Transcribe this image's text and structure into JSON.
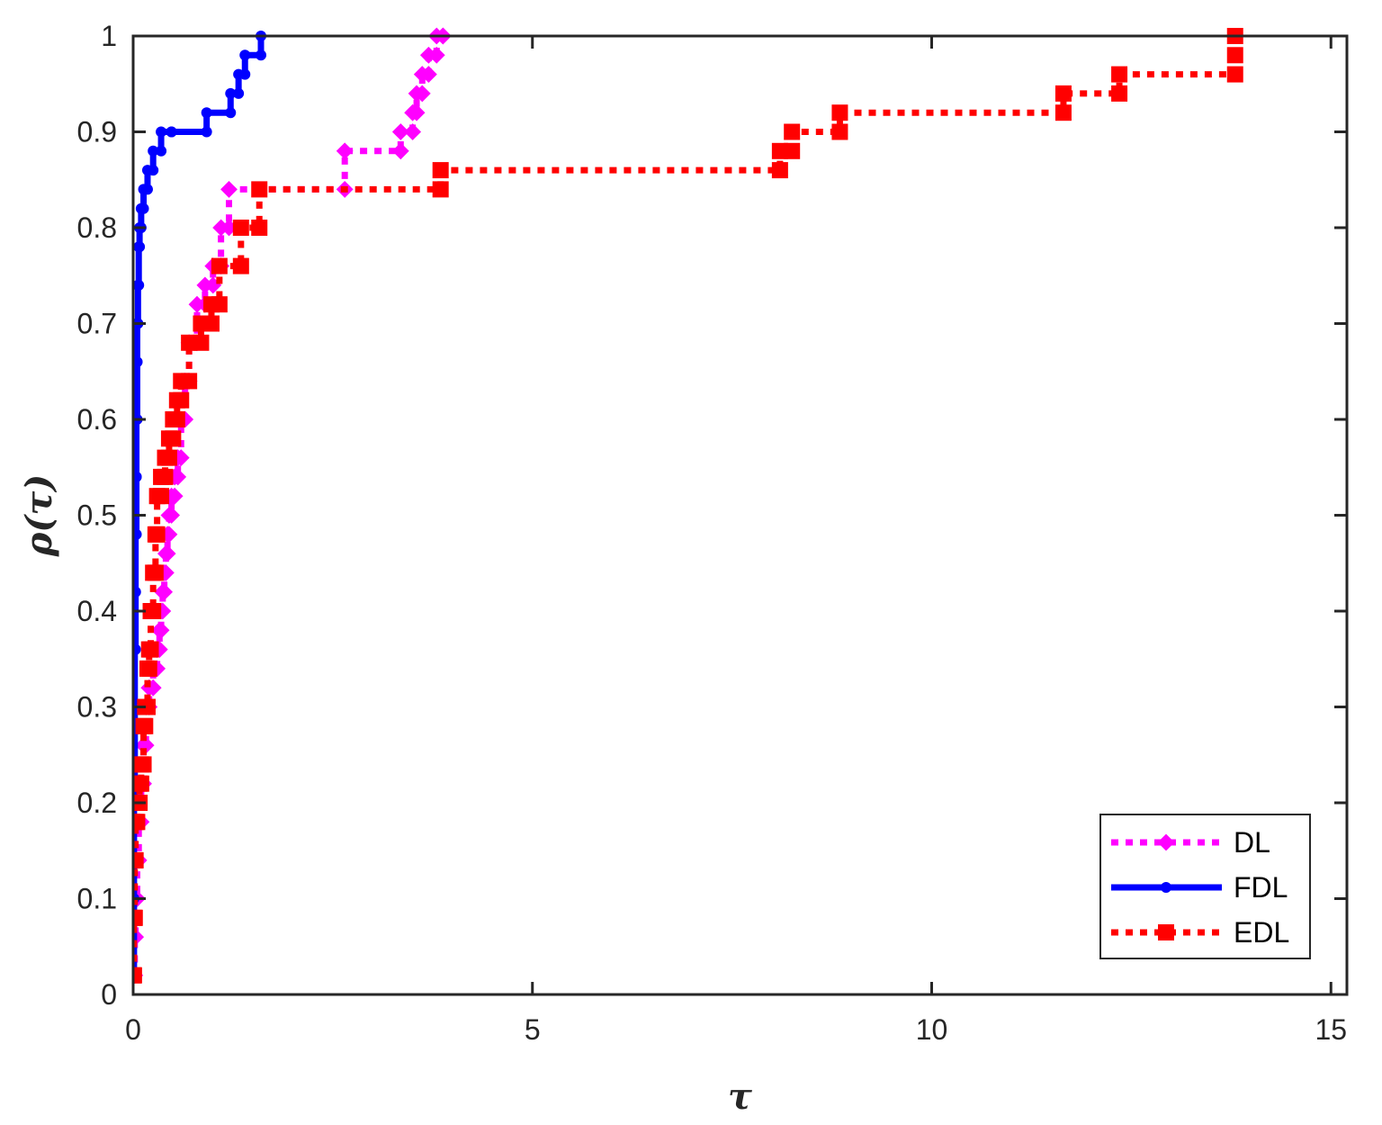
{
  "chart_data": {
    "type": "line",
    "xlabel": "τ",
    "ylabel": "ρ(τ)",
    "xlim": [
      0,
      15.2
    ],
    "ylim": [
      0,
      1
    ],
    "x_ticks": [
      "0",
      "5",
      "10",
      "15"
    ],
    "y_ticks": [
      "0",
      "0.1",
      "0.2",
      "0.3",
      "0.4",
      "0.5",
      "0.6",
      "0.7",
      "0.8",
      "0.9",
      "1"
    ],
    "grid": false,
    "legend_position": "bottom-right",
    "series": [
      {
        "name": "DL",
        "color": "#ff00ff",
        "line_style": "dotted",
        "marker": "diamond",
        "x": [
          0.0,
          0.02,
          0.03,
          0.05,
          0.07,
          0.1,
          0.13,
          0.16,
          0.2,
          0.25,
          0.3,
          0.33,
          0.35,
          0.37,
          0.39,
          0.41,
          0.43,
          0.45,
          0.48,
          0.52,
          0.56,
          0.6,
          0.65,
          0.7,
          0.8,
          0.9,
          1.0,
          1.1,
          1.2,
          2.65,
          3.35,
          3.5,
          3.55,
          3.62,
          3.7,
          3.8,
          3.88
        ],
        "y": [
          0.02,
          0.06,
          0.1,
          0.14,
          0.18,
          0.22,
          0.26,
          0.3,
          0.32,
          0.34,
          0.36,
          0.38,
          0.4,
          0.42,
          0.44,
          0.46,
          0.48,
          0.5,
          0.52,
          0.54,
          0.56,
          0.6,
          0.64,
          0.68,
          0.72,
          0.74,
          0.76,
          0.8,
          0.84,
          0.88,
          0.9,
          0.92,
          0.94,
          0.96,
          0.98,
          1.0,
          1.0
        ]
      },
      {
        "name": "FDL",
        "color": "#0000ff",
        "line_style": "solid",
        "marker": "dot",
        "x": [
          0.0,
          0.01,
          0.01,
          0.02,
          0.02,
          0.03,
          0.03,
          0.04,
          0.04,
          0.05,
          0.05,
          0.06,
          0.07,
          0.08,
          0.1,
          0.13,
          0.18,
          0.25,
          0.35,
          0.48,
          0.92,
          1.22,
          1.32,
          1.4,
          1.6
        ],
        "y": [
          0.02,
          0.1,
          0.2,
          0.3,
          0.36,
          0.42,
          0.48,
          0.54,
          0.6,
          0.66,
          0.7,
          0.74,
          0.78,
          0.8,
          0.82,
          0.84,
          0.86,
          0.88,
          0.9,
          0.9,
          0.92,
          0.94,
          0.96,
          0.98,
          1.0
        ]
      },
      {
        "name": "EDL",
        "color": "#ff0000",
        "line_style": "dotted",
        "marker": "square",
        "x": [
          0.0,
          0.01,
          0.02,
          0.03,
          0.05,
          0.08,
          0.1,
          0.13,
          0.15,
          0.18,
          0.2,
          0.22,
          0.25,
          0.28,
          0.3,
          0.35,
          0.4,
          0.45,
          0.5,
          0.55,
          0.6,
          0.7,
          0.85,
          0.98,
          1.08,
          1.35,
          1.58,
          3.85,
          8.1,
          8.25,
          8.85,
          11.65,
          12.35,
          13.8
        ],
        "y": [
          0.02,
          0.08,
          0.14,
          0.18,
          0.2,
          0.22,
          0.24,
          0.28,
          0.3,
          0.34,
          0.36,
          0.4,
          0.44,
          0.48,
          0.52,
          0.54,
          0.56,
          0.58,
          0.6,
          0.62,
          0.64,
          0.68,
          0.7,
          0.72,
          0.76,
          0.8,
          0.84,
          0.86,
          0.88,
          0.9,
          0.92,
          0.94,
          0.96,
          0.98
        ]
      }
    ],
    "edl_final_point": [
      13.8,
      1.0
    ]
  }
}
